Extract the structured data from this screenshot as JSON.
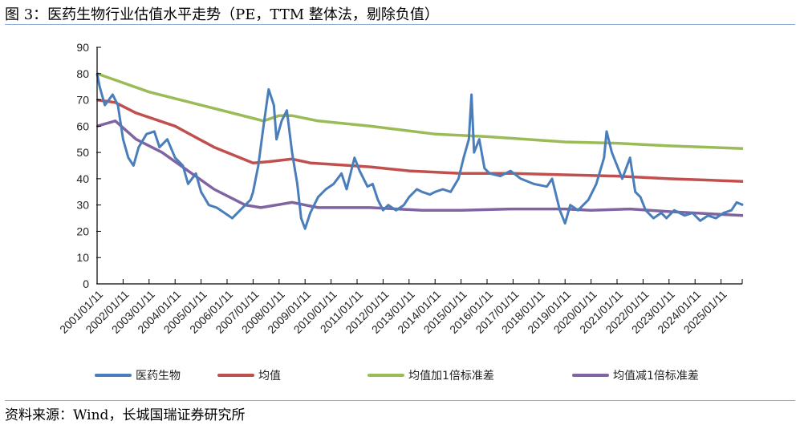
{
  "title": "图 3：医药生物行业估值水平走势（PE，TTM 整体法，剔除负值）",
  "source": "资料来源：Wind，长城国瑞证券研究所",
  "chart_data": {
    "type": "line",
    "title": "图 3：医药生物行业估值水平走势（PE，TTM 整体法，剔除负值）",
    "xlabel": "",
    "ylabel": "",
    "ylim": [
      0,
      90
    ],
    "yticks": [
      0,
      10,
      20,
      30,
      40,
      50,
      60,
      70,
      80,
      90
    ],
    "xlim": [
      2001.0,
      2025.85
    ],
    "xtick_labels": [
      "2001/01/11",
      "2002/01/11",
      "2003/01/11",
      "2004/01/11",
      "2005/01/11",
      "2006/01/11",
      "2007/01/11",
      "2008/01/11",
      "2009/01/11",
      "2010/01/11",
      "2011/01/11",
      "2012/01/11",
      "2013/01/11",
      "2014/01/11",
      "2015/01/11",
      "2016/01/11",
      "2017/01/11",
      "2018/01/11",
      "2019/01/11",
      "2020/01/11",
      "2021/01/11",
      "2022/01/11",
      "2023/01/11",
      "2024/01/11",
      "2025/01/11"
    ],
    "legend_position": "bottom",
    "grid": false,
    "series": [
      {
        "name": "医药生物",
        "color": "#4a7ebb",
        "points": [
          [
            2001.0,
            80
          ],
          [
            2001.1,
            75
          ],
          [
            2001.3,
            68
          ],
          [
            2001.6,
            72
          ],
          [
            2001.8,
            68
          ],
          [
            2002.0,
            55
          ],
          [
            2002.2,
            48
          ],
          [
            2002.4,
            45
          ],
          [
            2002.6,
            52
          ],
          [
            2002.9,
            57
          ],
          [
            2003.2,
            58
          ],
          [
            2003.4,
            52
          ],
          [
            2003.7,
            55
          ],
          [
            2004.0,
            48
          ],
          [
            2004.3,
            45
          ],
          [
            2004.5,
            38
          ],
          [
            2004.8,
            42
          ],
          [
            2005.0,
            35
          ],
          [
            2005.3,
            30
          ],
          [
            2005.6,
            29
          ],
          [
            2005.9,
            27
          ],
          [
            2006.2,
            25
          ],
          [
            2006.5,
            28
          ],
          [
            2006.9,
            32
          ],
          [
            2007.0,
            35
          ],
          [
            2007.2,
            45
          ],
          [
            2007.4,
            60
          ],
          [
            2007.6,
            74
          ],
          [
            2007.8,
            68
          ],
          [
            2007.9,
            55
          ],
          [
            2008.1,
            62
          ],
          [
            2008.3,
            66
          ],
          [
            2008.5,
            50
          ],
          [
            2008.7,
            38
          ],
          [
            2008.85,
            25
          ],
          [
            2009.0,
            21
          ],
          [
            2009.2,
            27
          ],
          [
            2009.5,
            33
          ],
          [
            2009.8,
            36
          ],
          [
            2010.1,
            38
          ],
          [
            2010.4,
            42
          ],
          [
            2010.6,
            36
          ],
          [
            2010.8,
            44
          ],
          [
            2010.9,
            48
          ],
          [
            2011.1,
            43
          ],
          [
            2011.4,
            37
          ],
          [
            2011.6,
            38
          ],
          [
            2011.8,
            32
          ],
          [
            2012.0,
            28
          ],
          [
            2012.2,
            30
          ],
          [
            2012.5,
            28
          ],
          [
            2012.8,
            30
          ],
          [
            2013.0,
            33
          ],
          [
            2013.3,
            36
          ],
          [
            2013.5,
            35
          ],
          [
            2013.8,
            34
          ],
          [
            2014.0,
            35
          ],
          [
            2014.3,
            36
          ],
          [
            2014.6,
            35
          ],
          [
            2014.9,
            40
          ],
          [
            2015.1,
            48
          ],
          [
            2015.3,
            55
          ],
          [
            2015.4,
            72
          ],
          [
            2015.5,
            50
          ],
          [
            2015.7,
            55
          ],
          [
            2015.9,
            44
          ],
          [
            2016.1,
            42
          ],
          [
            2016.5,
            41
          ],
          [
            2016.9,
            43
          ],
          [
            2017.3,
            40
          ],
          [
            2017.8,
            38
          ],
          [
            2018.3,
            37
          ],
          [
            2018.5,
            40
          ],
          [
            2018.8,
            28
          ],
          [
            2019.0,
            23
          ],
          [
            2019.2,
            30
          ],
          [
            2019.5,
            28
          ],
          [
            2019.9,
            32
          ],
          [
            2020.2,
            38
          ],
          [
            2020.5,
            48
          ],
          [
            2020.6,
            58
          ],
          [
            2020.8,
            50
          ],
          [
            2021.0,
            45
          ],
          [
            2021.2,
            40
          ],
          [
            2021.5,
            48
          ],
          [
            2021.7,
            35
          ],
          [
            2021.9,
            33
          ],
          [
            2022.1,
            28
          ],
          [
            2022.4,
            25
          ],
          [
            2022.7,
            27
          ],
          [
            2022.9,
            25
          ],
          [
            2023.2,
            28
          ],
          [
            2023.6,
            26
          ],
          [
            2023.9,
            27
          ],
          [
            2024.2,
            24
          ],
          [
            2024.5,
            26
          ],
          [
            2024.8,
            25
          ],
          [
            2025.1,
            27
          ],
          [
            2025.4,
            28
          ],
          [
            2025.6,
            31
          ],
          [
            2025.85,
            30
          ]
        ]
      },
      {
        "name": "均值",
        "color": "#c0504d",
        "points": [
          [
            2001.0,
            70
          ],
          [
            2001.7,
            69
          ],
          [
            2002.5,
            65
          ],
          [
            2004.0,
            60
          ],
          [
            2005.5,
            52
          ],
          [
            2007.0,
            46
          ],
          [
            2007.6,
            46.5
          ],
          [
            2008.5,
            47.5
          ],
          [
            2009.2,
            46
          ],
          [
            2010.0,
            45.5
          ],
          [
            2011.5,
            44.5
          ],
          [
            2013.0,
            43
          ],
          [
            2015.0,
            42
          ],
          [
            2017.0,
            42
          ],
          [
            2019.0,
            41.5
          ],
          [
            2021.0,
            41
          ],
          [
            2023.0,
            40
          ],
          [
            2025.85,
            39
          ]
        ]
      },
      {
        "name": "均值加1倍标准差",
        "color": "#9bbb59",
        "points": [
          [
            2001.0,
            80
          ],
          [
            2003.0,
            73
          ],
          [
            2005.0,
            68
          ],
          [
            2007.0,
            63
          ],
          [
            2007.4,
            62
          ],
          [
            2008.0,
            64
          ],
          [
            2008.5,
            64
          ],
          [
            2009.5,
            62
          ],
          [
            2011.5,
            60
          ],
          [
            2014.0,
            57
          ],
          [
            2016.0,
            56
          ],
          [
            2019.0,
            54
          ],
          [
            2021.0,
            53.5
          ],
          [
            2023.0,
            52.5
          ],
          [
            2025.85,
            51.5
          ]
        ]
      },
      {
        "name": "均值减1倍标准差",
        "color": "#8064a2",
        "points": [
          [
            2001.0,
            60
          ],
          [
            2001.7,
            62
          ],
          [
            2002.5,
            55
          ],
          [
            2003.5,
            50
          ],
          [
            2004.5,
            43
          ],
          [
            2005.5,
            36
          ],
          [
            2006.7,
            30
          ],
          [
            2007.3,
            29
          ],
          [
            2008.5,
            31
          ],
          [
            2009.5,
            29
          ],
          [
            2011.5,
            29
          ],
          [
            2013.5,
            28
          ],
          [
            2015.0,
            28
          ],
          [
            2017.0,
            28.5
          ],
          [
            2019.0,
            28.5
          ],
          [
            2020.0,
            28
          ],
          [
            2021.5,
            28.5
          ],
          [
            2023.0,
            27.5
          ],
          [
            2025.85,
            26
          ]
        ]
      }
    ]
  }
}
